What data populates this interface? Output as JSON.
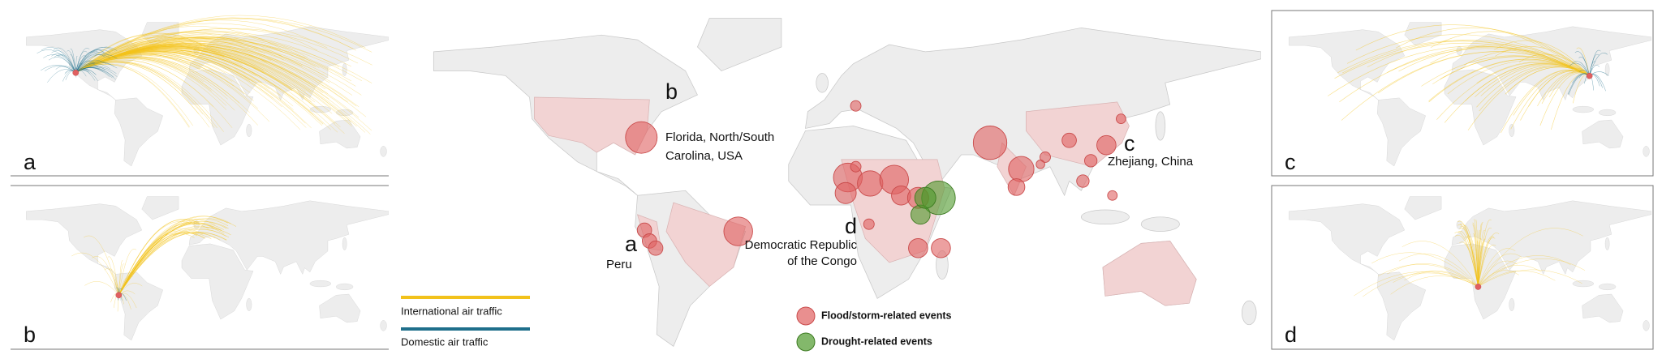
{
  "panels": [
    {
      "letter": "a"
    },
    {
      "letter": "b"
    },
    {
      "letter": "c"
    },
    {
      "letter": "d"
    }
  ],
  "labels": [
    {
      "letter": "b",
      "lines": [
        "Florida, North/South",
        "Carolina, USA"
      ]
    },
    {
      "letter": "a",
      "lines": [
        "Peru"
      ]
    },
    {
      "letter": "d",
      "lines": [
        "Democratic Republic",
        "of the Congo"
      ]
    },
    {
      "letter": "c",
      "lines": [
        "Zhejiang, China"
      ]
    }
  ],
  "legend": {
    "international": "International air traffic",
    "domestic": "Domestic air traffic",
    "flood": "Flood/storm-related events",
    "drought": "Drought-related events"
  }
}
